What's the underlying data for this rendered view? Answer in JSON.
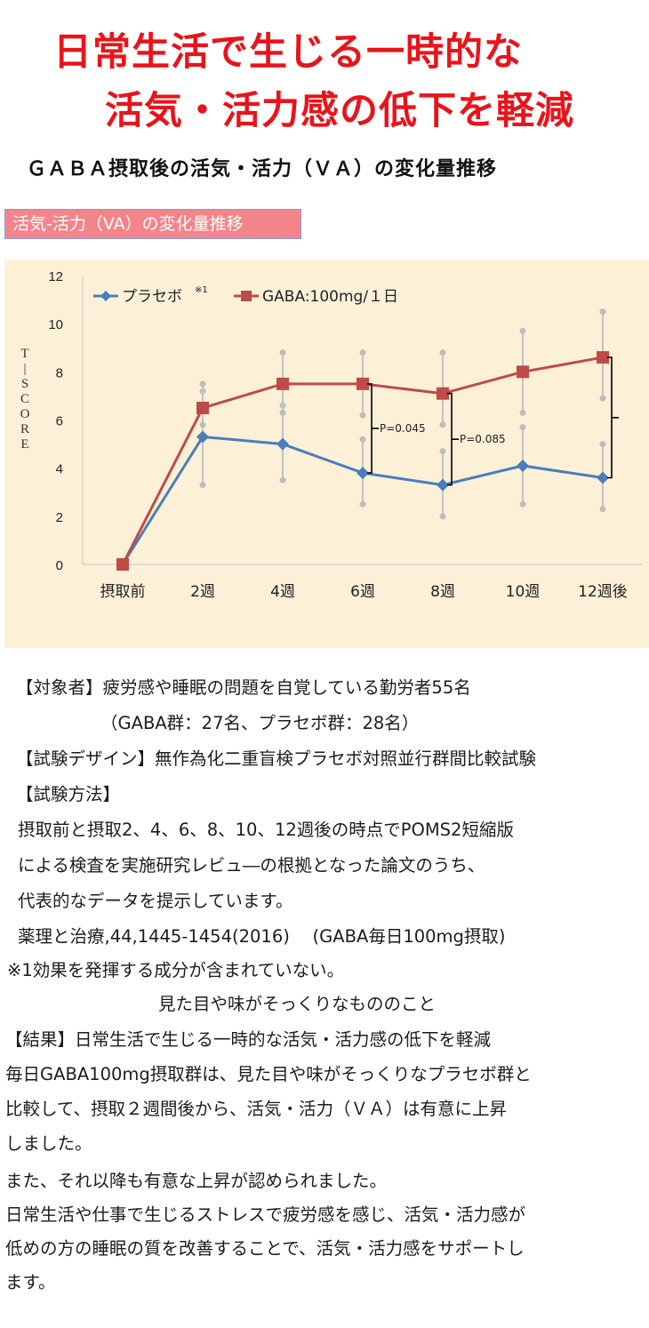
{
  "headline": {
    "line1": "日常生活で生じる一時的な",
    "line2": "活気・活力感の低下を軽減"
  },
  "subtitle": "ＧＡＢＡ摂取後の活気・活力（ＶＡ）の変化量推移",
  "ribbon_label": "活気-活力（VA）の変化量推移",
  "chart_data": {
    "type": "line",
    "title": "活気-活力（VA）の変化量推移",
    "ylabel": "T-SCORE",
    "xlabel": "",
    "ylim": [
      0,
      12
    ],
    "yticks": [
      "0",
      "2",
      "4",
      "6",
      "8",
      "10",
      "12"
    ],
    "categories": [
      "摂取前",
      "2週",
      "4週",
      "6週",
      "8週",
      "10週",
      "12週後"
    ],
    "series": [
      {
        "name": "プラセボ",
        "name_note": "※1",
        "color": "#4a7ebb",
        "marker": "diamond",
        "values": [
          0,
          5.3,
          5.0,
          3.8,
          3.3,
          4.1,
          3.6
        ],
        "err_low": [
          0,
          3.3,
          3.5,
          2.5,
          2.0,
          2.5,
          2.3
        ],
        "err_high": [
          0,
          7.2,
          6.6,
          5.2,
          4.7,
          5.7,
          5.0
        ]
      },
      {
        "name": "GABA:100mg/１日",
        "color": "#be4b48",
        "marker": "square",
        "values": [
          0,
          6.5,
          7.5,
          7.5,
          7.1,
          8.0,
          8.6
        ],
        "err_low": [
          0,
          5.8,
          6.3,
          6.2,
          5.8,
          6.3,
          6.9
        ],
        "err_high": [
          0,
          7.5,
          8.8,
          8.8,
          8.8,
          9.7,
          10.5
        ]
      }
    ],
    "annotations": [
      {
        "text": "P=0.045",
        "category_index": 3
      },
      {
        "text": "P=0.085",
        "category_index": 4
      },
      {
        "text": "",
        "category_index": 6
      }
    ],
    "legend_position": "top-left"
  },
  "body": {
    "subjects_label": "【対象者】",
    "subjects": "疲労感や睡眠の問題を自覚している勤労者55名",
    "subjects_detail": "（GABA群：27名、プラセボ群：28名）",
    "design_label": "【試験デザイン】",
    "design": "無作為化二重盲検プラセボ対照並行群間比較試験",
    "method_label": "【試験方法】",
    "method_1": "摂取前と摂取2、4、6、8、10、12週後の時点でPOMS2短縮版",
    "method_2": "による検査を実施研究レビュ―の根拠となった論文のうち、",
    "method_3": "代表的なデータを提示しています。",
    "citation": "薬理と治療,44,1445-1454(2016)　 (GABA毎日100mg摂取)",
    "note_1": "※1効果を発揮する成分が含まれていない。",
    "note_2": "見た目や味がそっくりなもののこと",
    "result_label": "【結果】",
    "result": "日常生活で生じる一時的な活気・活力感の低下を軽減",
    "result_1": "毎日GABA100mg摂取群は、見た目や味がそっくりなプラセボ群と",
    "result_2": "比較して、摂取２週間後から、活気・活力（ＶＡ）は有意に上昇",
    "result_3": "しました。",
    "result_4": "また、それ以降も有意な上昇が認められました。",
    "result_5": "日常生活や仕事で生じるストレスで疲労感を感じ、活気・活力感が",
    "result_6": "低めの方の睡眠の質を改善することで、活気・活力感をサポートし",
    "result_7": "ます。"
  }
}
